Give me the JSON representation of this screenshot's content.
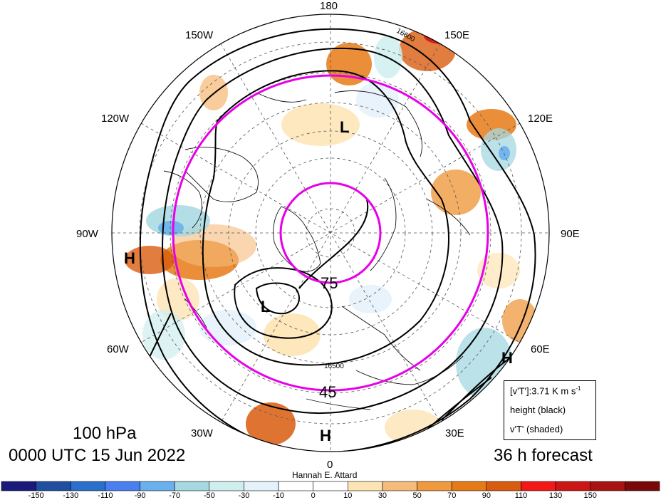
{
  "map": {
    "projection": "north-polar-stereographic",
    "lon_labels": {
      "lon_180": "180",
      "lon_150w": "150W",
      "lon_150e": "150E",
      "lon_120w": "120W",
      "lon_120e": "120E",
      "lon_90w": "90W",
      "lon_90e": "90E",
      "lon_60w": "60W",
      "lon_60e": "60E",
      "lon_30w": "30W",
      "lon_30e": "30E",
      "lon_0": "0"
    },
    "lat_circle_labels": {
      "lat_75": "75",
      "lat_45": "45"
    },
    "contour_labels": {
      "c1": "16600",
      "c2": "16500"
    },
    "pressure_systems": [
      {
        "type": "H",
        "region": "western North America"
      },
      {
        "type": "L",
        "region": "Greenland"
      },
      {
        "type": "L",
        "region": "Beaufort Sea"
      },
      {
        "type": "H",
        "region": "Central Asia"
      },
      {
        "type": "H",
        "region": "North Africa"
      }
    ],
    "highlight_color": "#e800e8"
  },
  "titles": {
    "level": "100 hPa",
    "valid_time": "0000 UTC 15 Jun 2022",
    "forecast": "36 h forecast",
    "author": "Hannah E. Attard"
  },
  "legend": {
    "line1_main": "[v'T']:3.71 K m s",
    "line1_sup": "-1",
    "line2": "height (black)",
    "line3": "v'T' (shaded)"
  },
  "colorbar": {
    "labels": [
      "-150",
      "-130",
      "-110",
      "-90",
      "-70",
      "-50",
      "-30",
      "-10",
      "0",
      "10",
      "30",
      "50",
      "70",
      "90",
      "110",
      "130",
      "150"
    ],
    "colors": [
      "#1a1a7a",
      "#1f4f9e",
      "#2a6fcc",
      "#4a7ff2",
      "#6ab0ec",
      "#a6d8e2",
      "#cfeeee",
      "#e6f2fb",
      "#ffffff",
      "#ffffff",
      "#fde4b4",
      "#f5bb7a",
      "#ef9a3e",
      "#e67a17",
      "#d95c0e",
      "#f21818",
      "#cc1515",
      "#a81212",
      "#7a0808"
    ]
  }
}
